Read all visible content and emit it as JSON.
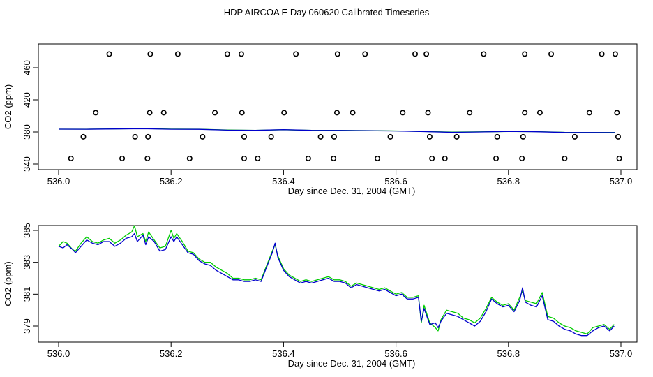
{
  "title": "HDP AIRCOA E  Day 060620  Calibrated Timeseries",
  "chart_data": [
    {
      "type": "scatter",
      "xlabel": "Day since Dec. 31, 2004 (GMT)",
      "ylabel": "CO2 (ppm)",
      "xlim": [
        536.0,
        537.0
      ],
      "ylim": [
        340,
        480
      ],
      "xticks": [
        536.0,
        536.2,
        536.4,
        536.6,
        536.8,
        537.0
      ],
      "xtick_labels": [
        "536.0",
        "536.2",
        "536.4",
        "536.6",
        "536.8",
        "537.0"
      ],
      "yticks": [
        340,
        380,
        420,
        460
      ],
      "ytick_labels": [
        "340",
        "380",
        "420",
        "460"
      ],
      "grid": false,
      "series": [
        {
          "kind": "points",
          "color": "#000000",
          "points": [
            [
              536.09,
              477
            ],
            [
              536.163,
              477
            ],
            [
              536.212,
              477
            ],
            [
              536.3,
              477
            ],
            [
              536.325,
              477
            ],
            [
              536.422,
              477
            ],
            [
              536.496,
              477
            ],
            [
              536.545,
              477
            ],
            [
              536.634,
              477
            ],
            [
              536.654,
              477
            ],
            [
              536.756,
              477
            ],
            [
              536.829,
              477
            ],
            [
              536.876,
              477
            ],
            [
              536.966,
              477
            ],
            [
              536.99,
              477
            ],
            [
              536.066,
              404
            ],
            [
              536.162,
              404
            ],
            [
              536.187,
              404
            ],
            [
              536.278,
              404
            ],
            [
              536.326,
              404
            ],
            [
              536.401,
              404
            ],
            [
              536.495,
              404
            ],
            [
              536.523,
              404
            ],
            [
              536.612,
              404
            ],
            [
              536.657,
              404
            ],
            [
              536.731,
              404
            ],
            [
              536.829,
              404
            ],
            [
              536.856,
              404
            ],
            [
              536.944,
              404
            ],
            [
              536.993,
              404
            ],
            [
              536.044,
              374
            ],
            [
              536.136,
              374
            ],
            [
              536.159,
              374
            ],
            [
              536.256,
              374
            ],
            [
              536.33,
              374
            ],
            [
              536.378,
              374
            ],
            [
              536.466,
              374
            ],
            [
              536.49,
              374
            ],
            [
              536.59,
              374
            ],
            [
              536.66,
              374
            ],
            [
              536.708,
              374
            ],
            [
              536.78,
              374
            ],
            [
              536.826,
              374
            ],
            [
              536.918,
              374
            ],
            [
              536.995,
              374
            ],
            [
              536.022,
              347
            ],
            [
              536.113,
              347
            ],
            [
              536.158,
              347
            ],
            [
              536.233,
              347
            ],
            [
              536.33,
              347
            ],
            [
              536.354,
              347
            ],
            [
              536.444,
              347
            ],
            [
              536.489,
              347
            ],
            [
              536.567,
              347
            ],
            [
              536.664,
              347
            ],
            [
              536.687,
              347
            ],
            [
              536.778,
              347
            ],
            [
              536.824,
              347
            ],
            [
              536.9,
              347
            ],
            [
              536.997,
              347
            ]
          ]
        },
        {
          "kind": "line",
          "color": "#00cc00",
          "x": [
            536.0,
            536.05,
            536.1,
            536.15,
            536.2,
            536.25,
            536.3,
            536.35,
            536.4,
            536.45,
            536.5,
            536.55,
            536.6,
            536.65,
            536.7,
            536.75,
            536.8,
            536.85,
            536.9,
            536.95,
            536.99
          ],
          "y": [
            383.5,
            383.5,
            383.8,
            384.3,
            383.6,
            383.5,
            382.4,
            382.1,
            382.8,
            382.0,
            382.0,
            381.7,
            381.3,
            380.6,
            379.8,
            380.2,
            380.6,
            380.4,
            379.6,
            379.5,
            379.4
          ]
        },
        {
          "kind": "line",
          "color": "#0000cc",
          "x": [
            536.0,
            536.05,
            536.1,
            536.15,
            536.2,
            536.25,
            536.3,
            536.35,
            536.4,
            536.45,
            536.5,
            536.55,
            536.6,
            536.65,
            536.7,
            536.75,
            536.8,
            536.85,
            536.9,
            536.95,
            536.99
          ],
          "y": [
            383.5,
            383.4,
            383.7,
            384.1,
            383.4,
            383.3,
            382.3,
            382.0,
            382.9,
            382.0,
            381.9,
            381.6,
            381.2,
            380.4,
            379.6,
            380.0,
            380.7,
            380.3,
            379.4,
            379.3,
            379.2
          ]
        }
      ]
    },
    {
      "type": "line",
      "xlabel": "Day since Dec. 31, 2004 (GMT)",
      "ylabel": "CO2 (ppm)",
      "xlim": [
        536.0,
        537.0
      ],
      "ylim": [
        378.0,
        385.7
      ],
      "xticks": [
        536.0,
        536.2,
        536.4,
        536.6,
        536.8,
        537.0
      ],
      "xtick_labels": [
        "536.0",
        "536.2",
        "536.4",
        "536.6",
        "536.8",
        "537.0"
      ],
      "yticks": [
        379,
        381,
        383,
        385
      ],
      "ytick_labels": [
        "379",
        "381",
        "383",
        "385"
      ],
      "grid": false,
      "series": [
        {
          "kind": "line",
          "color": "#00cc00",
          "x": [
            536.0,
            536.008,
            536.015,
            536.025,
            536.03,
            536.04,
            536.05,
            536.06,
            536.07,
            536.08,
            536.09,
            536.1,
            536.11,
            536.12,
            536.13,
            536.135,
            536.14,
            536.15,
            536.155,
            536.16,
            536.17,
            536.18,
            536.19,
            536.2,
            536.205,
            536.21,
            536.22,
            536.23,
            536.24,
            536.25,
            536.26,
            536.27,
            536.28,
            536.29,
            536.3,
            536.31,
            536.32,
            536.33,
            536.34,
            536.35,
            536.36,
            536.37,
            536.38,
            536.385,
            536.39,
            536.4,
            536.41,
            536.42,
            536.43,
            536.44,
            536.45,
            536.46,
            536.47,
            536.48,
            536.49,
            536.5,
            536.51,
            536.52,
            536.53,
            536.54,
            536.55,
            536.56,
            536.57,
            536.58,
            536.59,
            536.6,
            536.61,
            536.62,
            536.63,
            536.64,
            536.645,
            536.65,
            536.66,
            536.67,
            536.675,
            536.68,
            536.69,
            536.7,
            536.71,
            536.72,
            536.73,
            536.74,
            536.75,
            536.76,
            536.77,
            536.78,
            536.79,
            536.8,
            536.81,
            536.82,
            536.825,
            536.83,
            536.84,
            536.85,
            536.86,
            536.87,
            536.88,
            536.89,
            536.9,
            536.91,
            536.92,
            536.93,
            536.94,
            536.95,
            536.96,
            536.97,
            536.98,
            536.988
          ],
          "y": [
            384.0,
            384.3,
            384.2,
            383.8,
            383.7,
            384.2,
            384.6,
            384.3,
            384.2,
            384.4,
            384.5,
            384.2,
            384.4,
            384.7,
            384.9,
            385.3,
            384.6,
            384.8,
            384.3,
            384.9,
            384.4,
            383.9,
            384.0,
            385.0,
            384.5,
            384.8,
            384.3,
            383.7,
            383.6,
            383.2,
            383.0,
            383.0,
            382.7,
            382.5,
            382.3,
            382.0,
            382.0,
            381.9,
            381.9,
            382.0,
            381.9,
            382.8,
            383.7,
            384.1,
            383.4,
            382.6,
            382.2,
            382.0,
            381.8,
            381.9,
            381.8,
            381.9,
            382.0,
            382.1,
            381.9,
            381.9,
            381.8,
            381.5,
            381.7,
            381.6,
            381.5,
            381.4,
            381.3,
            381.4,
            381.2,
            381.0,
            381.1,
            380.8,
            380.8,
            380.9,
            379.2,
            380.3,
            379.2,
            378.9,
            378.7,
            379.4,
            380.0,
            379.9,
            379.8,
            379.5,
            379.4,
            379.2,
            379.5,
            380.1,
            380.8,
            380.5,
            380.3,
            380.4,
            380.0,
            380.8,
            381.2,
            380.6,
            380.5,
            380.4,
            381.1,
            379.6,
            379.5,
            379.2,
            379.0,
            378.9,
            378.7,
            378.6,
            378.5,
            378.9,
            379.0,
            379.1,
            378.8,
            379.1
          ]
        },
        {
          "kind": "line",
          "color": "#0000cc",
          "x": [
            536.0,
            536.008,
            536.015,
            536.025,
            536.03,
            536.04,
            536.05,
            536.06,
            536.07,
            536.08,
            536.09,
            536.1,
            536.11,
            536.12,
            536.13,
            536.135,
            536.14,
            536.15,
            536.155,
            536.16,
            536.17,
            536.18,
            536.19,
            536.2,
            536.205,
            536.21,
            536.22,
            536.23,
            536.24,
            536.25,
            536.26,
            536.27,
            536.28,
            536.29,
            536.3,
            536.31,
            536.32,
            536.33,
            536.34,
            536.35,
            536.36,
            536.37,
            536.38,
            536.385,
            536.39,
            536.4,
            536.41,
            536.42,
            536.43,
            536.44,
            536.45,
            536.46,
            536.47,
            536.48,
            536.49,
            536.5,
            536.51,
            536.52,
            536.53,
            536.54,
            536.55,
            536.56,
            536.57,
            536.58,
            536.59,
            536.6,
            536.61,
            536.62,
            536.63,
            536.64,
            536.645,
            536.65,
            536.66,
            536.67,
            536.675,
            536.68,
            536.69,
            536.7,
            536.71,
            536.72,
            536.73,
            536.74,
            536.75,
            536.76,
            536.77,
            536.78,
            536.79,
            536.8,
            536.81,
            536.82,
            536.825,
            536.83,
            536.84,
            536.85,
            536.86,
            536.87,
            536.88,
            536.89,
            536.9,
            536.91,
            536.92,
            536.93,
            536.94,
            536.95,
            536.96,
            536.97,
            536.98,
            536.988
          ],
          "y": [
            384.0,
            383.9,
            384.1,
            383.8,
            383.6,
            384.0,
            384.4,
            384.2,
            384.1,
            384.3,
            384.3,
            384.0,
            384.2,
            384.5,
            384.6,
            384.8,
            384.3,
            384.7,
            384.1,
            384.6,
            384.3,
            383.7,
            383.8,
            384.6,
            384.3,
            384.6,
            384.1,
            383.6,
            383.5,
            383.1,
            382.9,
            382.8,
            382.5,
            382.3,
            382.1,
            381.9,
            381.9,
            381.8,
            381.8,
            381.9,
            381.8,
            382.7,
            383.6,
            384.2,
            383.3,
            382.5,
            382.1,
            381.9,
            381.7,
            381.8,
            381.7,
            381.8,
            381.9,
            382.0,
            381.8,
            381.8,
            381.7,
            381.4,
            381.6,
            381.5,
            381.4,
            381.3,
            381.2,
            381.3,
            381.1,
            380.9,
            381.0,
            380.7,
            380.7,
            380.8,
            379.3,
            380.1,
            379.1,
            379.2,
            378.9,
            379.3,
            379.8,
            379.7,
            379.6,
            379.4,
            379.2,
            379.0,
            379.3,
            379.9,
            380.7,
            380.4,
            380.2,
            380.3,
            379.9,
            380.6,
            381.4,
            380.5,
            380.3,
            380.2,
            380.9,
            379.4,
            379.3,
            379.0,
            378.8,
            378.7,
            378.5,
            378.4,
            378.4,
            378.7,
            378.9,
            379.0,
            378.7,
            379.0
          ]
        }
      ]
    }
  ]
}
